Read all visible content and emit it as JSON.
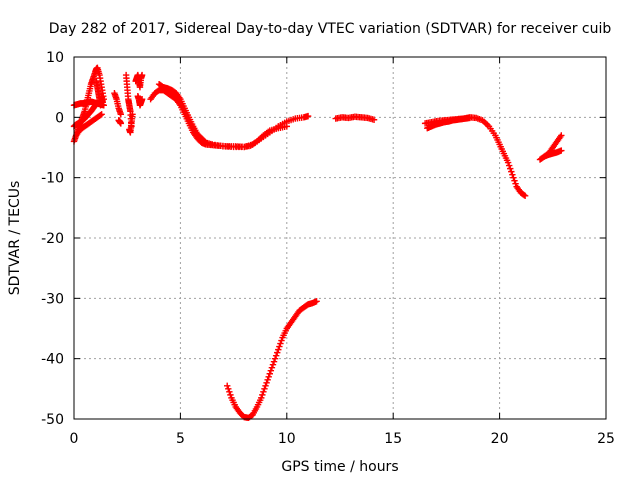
{
  "chart_data": {
    "type": "scatter",
    "title": "Day 282 of 2017, Sidereal Day-to-day VTEC variation (SDTVAR) for receiver cuib",
    "xlabel": "GPS time / hours",
    "ylabel": "SDTVAR / TECUs",
    "xlim": [
      0,
      25
    ],
    "ylim": [
      -50,
      10
    ],
    "xticks": [
      0,
      5,
      10,
      15,
      20,
      25
    ],
    "yticks": [
      10,
      0,
      -10,
      -20,
      -30,
      -40,
      -50
    ],
    "xtick_labels": [
      "0",
      "5",
      "10",
      "15",
      "20",
      "25"
    ],
    "ytick_labels": [
      "10",
      "0",
      "-10",
      "-20",
      "-30",
      "-40",
      "-50"
    ],
    "grid": true,
    "marker": "+",
    "color": "#ff0000",
    "series": [
      {
        "name": "s1",
        "x": [
          0.0,
          0.1,
          0.2,
          0.3,
          0.4,
          0.5,
          0.6,
          0.7,
          0.8,
          0.9,
          1.0,
          1.05,
          1.1,
          1.2,
          1.3,
          1.4
        ],
        "y": [
          -4.0,
          -3.0,
          -2.0,
          -1.0,
          0.0,
          1.0,
          2.5,
          4.0,
          5.5,
          6.5,
          7.5,
          8.0,
          8.2,
          7.0,
          5.0,
          3.0
        ]
      },
      {
        "name": "s2",
        "x": [
          0.0,
          0.1,
          0.2,
          0.3,
          0.4,
          0.5,
          0.6,
          0.7,
          0.8,
          0.9,
          1.0,
          1.1,
          1.2,
          1.3,
          1.4
        ],
        "y": [
          2.0,
          2.1,
          2.2,
          2.3,
          2.3,
          2.4,
          2.4,
          2.5,
          2.6,
          2.5,
          2.4,
          2.3,
          2.2,
          2.1,
          2.0
        ]
      },
      {
        "name": "s3",
        "x": [
          0.0,
          0.1,
          0.2,
          0.3,
          0.4,
          0.5,
          0.6,
          0.7,
          0.8,
          0.9,
          1.0
        ],
        "y": [
          -1.5,
          -1.2,
          -1.0,
          -0.8,
          -0.5,
          -0.2,
          0.2,
          0.6,
          1.0,
          1.5,
          2.0
        ]
      },
      {
        "name": "s4",
        "x": [
          0.1,
          0.3,
          0.5,
          0.7,
          0.9,
          1.1,
          1.3
        ],
        "y": [
          -3.0,
          -2.0,
          -1.5,
          -1.0,
          -0.5,
          0.0,
          0.5
        ]
      },
      {
        "name": "s5",
        "x": [
          1.05,
          1.1,
          1.15,
          1.2,
          1.25,
          1.3,
          1.35
        ],
        "y": [
          6.0,
          5.0,
          4.0,
          3.0,
          2.0,
          3.5,
          2.5
        ]
      },
      {
        "name": "s6",
        "x": [
          1.9,
          2.0,
          2.1,
          2.2
        ],
        "y": [
          4.0,
          3.0,
          1.5,
          0.5
        ]
      },
      {
        "name": "s7",
        "x": [
          2.1,
          2.15,
          2.2
        ],
        "y": [
          -0.5,
          -0.7,
          -1.0
        ]
      },
      {
        "name": "s8",
        "x": [
          2.45,
          2.5,
          2.55,
          2.6,
          2.65,
          2.7
        ],
        "y": [
          7.0,
          5.0,
          3.0,
          2.0,
          1.0,
          -1.5
        ]
      },
      {
        "name": "s9",
        "x": [
          2.6,
          2.65,
          2.7,
          2.75
        ],
        "y": [
          -2.0,
          -2.5,
          -1.0,
          0.5
        ]
      },
      {
        "name": "s10",
        "x": [
          2.9,
          2.95,
          3.0,
          3.05,
          3.1,
          3.15,
          3.2
        ],
        "y": [
          6.0,
          6.5,
          7.0,
          6.0,
          5.0,
          6.5,
          7.0
        ]
      },
      {
        "name": "s11",
        "x": [
          3.0,
          3.05,
          3.1,
          3.15,
          3.2
        ],
        "y": [
          3.5,
          3.0,
          2.0,
          2.5,
          3.0
        ]
      },
      {
        "name": "s12",
        "x": [
          3.6,
          3.8,
          4.0,
          4.2,
          4.4,
          4.6,
          4.8,
          5.0,
          5.2,
          5.4,
          5.6,
          5.8,
          6.0,
          6.2,
          6.5,
          6.8,
          7.2,
          7.6,
          8.0,
          8.4,
          8.8,
          9.2,
          9.6,
          10.0,
          10.4,
          10.8,
          11.0
        ],
        "y": [
          3.0,
          4.0,
          4.5,
          4.5,
          4.0,
          3.5,
          3.0,
          2.0,
          0.5,
          -1.0,
          -2.5,
          -3.5,
          -4.2,
          -4.5,
          -4.6,
          -4.7,
          -4.8,
          -4.8,
          -4.9,
          -4.5,
          -3.5,
          -2.5,
          -1.5,
          -0.7,
          -0.2,
          0.0,
          0.2
        ]
      },
      {
        "name": "s13",
        "x": [
          4.0,
          4.2,
          4.4,
          4.6,
          4.8,
          5.0,
          5.2,
          5.4,
          5.6,
          5.8,
          6.0,
          6.2,
          6.5,
          7.0,
          7.5,
          8.0,
          8.3,
          8.6,
          8.9,
          9.2,
          9.6,
          10.0
        ],
        "y": [
          5.5,
          5.0,
          4.8,
          4.5,
          4.0,
          3.0,
          1.5,
          0.0,
          -1.5,
          -2.8,
          -3.5,
          -4.2,
          -4.5,
          -4.8,
          -4.9,
          -4.9,
          -4.7,
          -4.0,
          -3.0,
          -2.2,
          -1.8,
          -1.5
        ]
      },
      {
        "name": "s14",
        "x": [
          12.3,
          12.6,
          12.9,
          13.2,
          13.5,
          13.8,
          14.1
        ],
        "y": [
          -0.2,
          0.0,
          -0.1,
          0.1,
          0.0,
          -0.1,
          -0.4
        ]
      },
      {
        "name": "s15",
        "x": [
          16.5,
          16.8,
          17.1,
          17.4,
          17.7,
          18.0,
          18.3,
          18.6,
          18.9,
          19.2,
          19.5,
          19.8,
          20.0,
          20.2,
          20.4,
          20.6,
          20.8,
          21.0,
          21.2
        ],
        "y": [
          -1.0,
          -0.8,
          -0.6,
          -0.5,
          -0.4,
          -0.3,
          -0.2,
          0.0,
          -0.1,
          -0.5,
          -1.5,
          -3.0,
          -4.5,
          -6.0,
          -7.5,
          -9.5,
          -11.5,
          -12.5,
          -13.0
        ]
      },
      {
        "name": "s16",
        "x": [
          16.6,
          16.8,
          17.0,
          17.2,
          17.4,
          17.6,
          17.8,
          18.0,
          18.2,
          18.4,
          18.6
        ],
        "y": [
          -1.8,
          -1.5,
          -1.2,
          -1.0,
          -0.8,
          -0.7,
          -0.5,
          -0.4,
          -0.3,
          -0.2,
          -0.1
        ]
      },
      {
        "name": "s17",
        "x": [
          21.9,
          22.1,
          22.3,
          22.5,
          22.7,
          22.9
        ],
        "y": [
          -7.0,
          -6.5,
          -6.0,
          -5.0,
          -4.0,
          -3.0
        ]
      },
      {
        "name": "s18",
        "x": [
          22.1,
          22.3,
          22.5,
          22.7,
          22.9
        ],
        "y": [
          -6.5,
          -6.2,
          -6.0,
          -5.8,
          -5.5
        ]
      },
      {
        "name": "s19",
        "x": [
          7.2,
          7.4,
          7.6,
          7.8,
          8.0,
          8.2,
          8.4,
          8.6,
          8.8,
          9.0,
          9.2,
          9.4,
          9.6,
          9.8,
          10.0,
          10.2,
          10.4,
          10.6,
          10.8,
          11.0,
          11.2,
          11.4
        ],
        "y": [
          -44.5,
          -46.5,
          -48.0,
          -49.0,
          -49.7,
          -49.8,
          -49.3,
          -48.0,
          -46.5,
          -44.5,
          -42.5,
          -40.5,
          -38.5,
          -36.5,
          -35.0,
          -34.0,
          -33.0,
          -32.0,
          -31.5,
          -31.0,
          -30.8,
          -30.5
        ]
      }
    ]
  }
}
